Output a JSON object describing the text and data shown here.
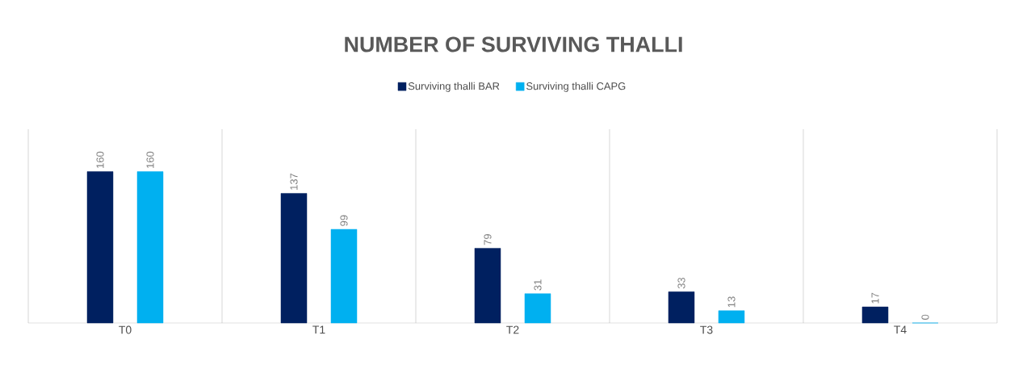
{
  "chart_data": {
    "type": "bar",
    "title": "NUMBER OF SURVIVING THALLI",
    "categories": [
      "T0",
      "T1",
      "T2",
      "T3",
      "T4"
    ],
    "series": [
      {
        "name": "Surviving thalli BAR",
        "color": "#002060",
        "values": [
          160,
          137,
          79,
          33,
          17
        ]
      },
      {
        "name": "Surviving thalli CAPG",
        "color": "#00b0f0",
        "values": [
          160,
          99,
          31,
          13,
          0
        ]
      }
    ],
    "data_labels": true,
    "legend": "top",
    "grid": "x"
  }
}
